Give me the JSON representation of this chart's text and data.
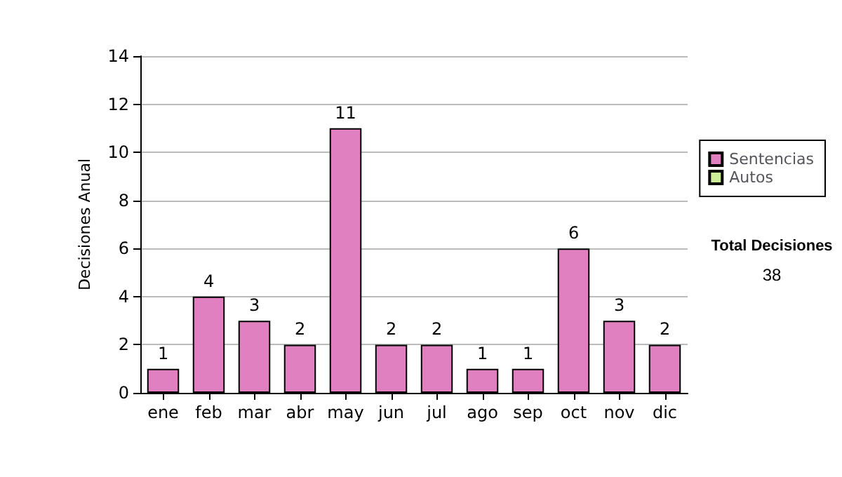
{
  "chart_data": {
    "type": "bar",
    "ylabel": "Decisiones Anual",
    "categories": [
      "ene",
      "feb",
      "mar",
      "abr",
      "may",
      "jun",
      "jul",
      "ago",
      "sep",
      "oct",
      "nov",
      "dic"
    ],
    "series": [
      {
        "name": "Sentencias",
        "color": "#e080c0",
        "values": [
          1,
          4,
          3,
          2,
          11,
          2,
          2,
          1,
          1,
          6,
          3,
          2
        ]
      },
      {
        "name": "Autos",
        "color": "#ccee99",
        "values": [
          null,
          null,
          null,
          null,
          null,
          null,
          null,
          null,
          null,
          null,
          null,
          null
        ]
      }
    ],
    "ylim": [
      0,
      14
    ],
    "yticks": [
      0,
      2,
      4,
      6,
      8,
      10,
      12,
      14
    ],
    "grid": "y",
    "legend": "right",
    "data_labels": true,
    "annotations": [
      "Total Decisiones",
      "38"
    ]
  }
}
